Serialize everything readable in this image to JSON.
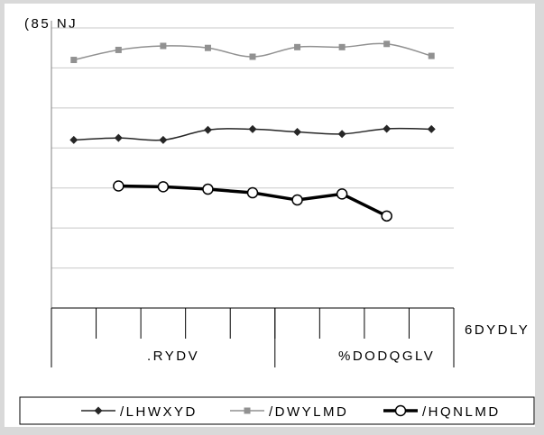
{
  "chart_data": {
    "type": "line",
    "yunit_label": "(85 NJ",
    "ylim": [
      0,
      7
    ],
    "grid": true,
    "legend_position": "bottom",
    "x_axis_title": "6DYDLY",
    "x_groups": [
      {
        "label": ".RYDV"
      },
      {
        "label": "%DODQGLV"
      }
    ],
    "categories": [
      "",
      "",
      "",
      "",
      "",
      "",
      "",
      "",
      ""
    ],
    "series": [
      {
        "name": "/LHWXYD",
        "color": "#262626",
        "marker": "diamond",
        "width": 1.5,
        "values": [
          4.2,
          4.25,
          4.2,
          4.45,
          4.47,
          4.4,
          4.35,
          4.48,
          4.47
        ]
      },
      {
        "name": "/DWYLMD",
        "color": "#919191",
        "marker": "square",
        "width": 1.5,
        "values": [
          6.2,
          6.45,
          6.55,
          6.5,
          6.28,
          6.52,
          6.52,
          6.6,
          6.3
        ]
      },
      {
        "name": "/HQNLMD",
        "color": "#000000",
        "marker": "circle",
        "width": 3.5,
        "values": [
          null,
          3.05,
          3.03,
          2.97,
          2.88,
          2.7,
          2.85,
          2.3,
          null
        ]
      }
    ]
  }
}
